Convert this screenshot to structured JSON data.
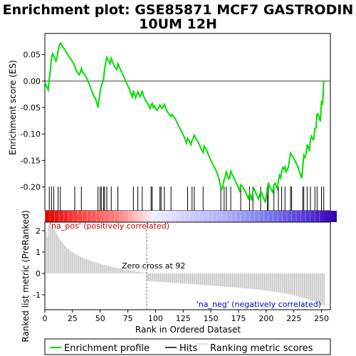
{
  "chart_data": {
    "type": "line",
    "title_line1": "Enrichment plot: GSE85871 MCF7 GASTRODIN",
    "title_line2": "10UM 12H",
    "ylabel_top": "Enrichment score (ES)",
    "ylabel_bottom": "Ranked list metric (PreRanked)",
    "xlabel": "Rank in Ordered Dataset",
    "x_ticks": [
      "0",
      "25",
      "50",
      "75",
      "100",
      "125",
      "150",
      "175",
      "200",
      "225",
      "250"
    ],
    "es_ticks": [
      "0.05",
      "0.00",
      "-0.05",
      "-0.10",
      "-0.15",
      "-0.20"
    ],
    "metric_ticks": [
      "2",
      "1",
      "0",
      "-1"
    ],
    "xlim": [
      0,
      258
    ],
    "es_ylim": [
      -0.245,
      0.09
    ],
    "metric_ylim": [
      -1.7,
      2.4
    ],
    "n_ranks": 253,
    "zero_cross_rank": 92,
    "zero_cross_label": "Zero cross at 92",
    "pos_label": "'na_pos' (positively correlated)",
    "neg_label": "'na_neg' (negatively correlated)",
    "hits": [
      4,
      6,
      8,
      12,
      14,
      27,
      33,
      48,
      50,
      51,
      53,
      54,
      56,
      60,
      66,
      80,
      84,
      88,
      96,
      97,
      104,
      105,
      108,
      114,
      129,
      133,
      135,
      143,
      159,
      162,
      164,
      168,
      177,
      185,
      188,
      195,
      201,
      202,
      207,
      211,
      214,
      217,
      222,
      223,
      233,
      234,
      237,
      240,
      244,
      246,
      250,
      252
    ],
    "es_profile": [
      [
        0,
        -0.002
      ],
      [
        1,
        -0.008
      ],
      [
        3,
        -0.017
      ],
      [
        4,
        0.003
      ],
      [
        5,
        0.022
      ],
      [
        6,
        0.044
      ],
      [
        7,
        0.052
      ],
      [
        8,
        0.047
      ],
      [
        9,
        0.043
      ],
      [
        10,
        0.038
      ],
      [
        11,
        0.045
      ],
      [
        12,
        0.058
      ],
      [
        13,
        0.067
      ],
      [
        14,
        0.072
      ],
      [
        15,
        0.069
      ],
      [
        18,
        0.059
      ],
      [
        21,
        0.049
      ],
      [
        24,
        0.04
      ],
      [
        26,
        0.033
      ],
      [
        27,
        0.029
      ],
      [
        28,
        0.021
      ],
      [
        29,
        0.018
      ],
      [
        31,
        0.012
      ],
      [
        32,
        0.016
      ],
      [
        33,
        0.024
      ],
      [
        34,
        0.018
      ],
      [
        37,
        0.009
      ],
      [
        40,
        -0.005
      ],
      [
        43,
        -0.022
      ],
      [
        46,
        -0.035
      ],
      [
        47,
        -0.042
      ],
      [
        48,
        -0.05
      ],
      [
        49,
        -0.035
      ],
      [
        50,
        -0.02
      ],
      [
        51,
        -0.009
      ],
      [
        52,
        -0.003
      ],
      [
        53,
        0.003
      ],
      [
        54,
        0.022
      ],
      [
        55,
        0.035
      ],
      [
        56,
        0.045
      ],
      [
        58,
        0.038
      ],
      [
        59,
        0.033
      ],
      [
        60,
        0.043
      ],
      [
        61,
        0.037
      ],
      [
        63,
        0.027
      ],
      [
        65,
        0.022
      ],
      [
        66,
        0.033
      ],
      [
        68,
        0.023
      ],
      [
        70,
        0.015
      ],
      [
        73,
        0.0
      ],
      [
        76,
        -0.013
      ],
      [
        79,
        -0.03
      ],
      [
        80,
        -0.018
      ],
      [
        82,
        -0.032
      ],
      [
        84,
        -0.02
      ],
      [
        85,
        -0.025
      ],
      [
        86,
        -0.03
      ],
      [
        87,
        -0.025
      ],
      [
        88,
        -0.018
      ],
      [
        89,
        -0.028
      ],
      [
        92,
        -0.04
      ],
      [
        94,
        -0.047
      ],
      [
        95,
        -0.052
      ],
      [
        96,
        -0.045
      ],
      [
        97,
        -0.042
      ],
      [
        98,
        -0.05
      ],
      [
        99,
        -0.047
      ],
      [
        101,
        -0.055
      ],
      [
        103,
        -0.05
      ],
      [
        104,
        -0.045
      ],
      [
        106,
        -0.052
      ],
      [
        107,
        -0.048
      ],
      [
        108,
        -0.044
      ],
      [
        110,
        -0.055
      ],
      [
        112,
        -0.062
      ],
      [
        114,
        -0.067
      ],
      [
        115,
        -0.063
      ],
      [
        118,
        -0.072
      ],
      [
        121,
        -0.085
      ],
      [
        124,
        -0.097
      ],
      [
        126,
        -0.106
      ],
      [
        128,
        -0.117
      ],
      [
        129,
        -0.108
      ],
      [
        131,
        -0.115
      ],
      [
        132,
        -0.12
      ],
      [
        133,
        -0.112
      ],
      [
        134,
        -0.108
      ],
      [
        135,
        -0.102
      ],
      [
        137,
        -0.11
      ],
      [
        139,
        -0.117
      ],
      [
        141,
        -0.127
      ],
      [
        143,
        -0.135
      ],
      [
        144,
        -0.123
      ],
      [
        146,
        -0.13
      ],
      [
        149,
        -0.145
      ],
      [
        152,
        -0.158
      ],
      [
        155,
        -0.17
      ],
      [
        157,
        -0.182
      ],
      [
        159,
        -0.2
      ],
      [
        160,
        -0.204
      ],
      [
        161,
        -0.197
      ],
      [
        162,
        -0.186
      ],
      [
        163,
        -0.181
      ],
      [
        164,
        -0.172
      ],
      [
        165,
        -0.178
      ],
      [
        166,
        -0.185
      ],
      [
        167,
        -0.183
      ],
      [
        168,
        -0.17
      ],
      [
        169,
        -0.175
      ],
      [
        171,
        -0.184
      ],
      [
        174,
        -0.197
      ],
      [
        176,
        -0.207
      ],
      [
        177,
        -0.196
      ],
      [
        179,
        -0.2
      ],
      [
        181,
        -0.208
      ],
      [
        184,
        -0.222
      ],
      [
        185,
        -0.212
      ],
      [
        186,
        -0.218
      ],
      [
        187,
        -0.223
      ],
      [
        188,
        -0.208
      ],
      [
        189,
        -0.203
      ],
      [
        190,
        -0.208
      ],
      [
        193,
        -0.223
      ],
      [
        195,
        -0.209
      ],
      [
        196,
        -0.21
      ],
      [
        197,
        -0.218
      ],
      [
        199,
        -0.228
      ],
      [
        200,
        -0.22
      ],
      [
        201,
        -0.203
      ],
      [
        202,
        -0.192
      ],
      [
        203,
        -0.199
      ],
      [
        206,
        -0.21
      ],
      [
        207,
        -0.196
      ],
      [
        208,
        -0.193
      ],
      [
        210,
        -0.203
      ],
      [
        211,
        -0.19
      ],
      [
        212,
        -0.178
      ],
      [
        213,
        -0.183
      ],
      [
        214,
        -0.17
      ],
      [
        215,
        -0.163
      ],
      [
        216,
        -0.166
      ],
      [
        217,
        -0.162
      ],
      [
        218,
        -0.172
      ],
      [
        220,
        -0.163
      ],
      [
        221,
        -0.149
      ],
      [
        222,
        -0.136
      ],
      [
        223,
        -0.14
      ],
      [
        225,
        -0.146
      ],
      [
        227,
        -0.155
      ],
      [
        229,
        -0.164
      ],
      [
        231,
        -0.177
      ],
      [
        232,
        -0.184
      ],
      [
        233,
        -0.164
      ],
      [
        234,
        -0.14
      ],
      [
        235,
        -0.144
      ],
      [
        236,
        -0.138
      ],
      [
        237,
        -0.12
      ],
      [
        238,
        -0.125
      ],
      [
        239,
        -0.132
      ],
      [
        240,
        -0.11
      ],
      [
        241,
        -0.104
      ],
      [
        242,
        -0.11
      ],
      [
        243,
        -0.11
      ],
      [
        244,
        -0.09
      ],
      [
        245,
        -0.088
      ],
      [
        246,
        -0.062
      ],
      [
        247,
        -0.063
      ],
      [
        248,
        -0.07
      ],
      [
        249,
        -0.076
      ],
      [
        250,
        -0.037
      ],
      [
        251,
        -0.045
      ],
      [
        252,
        0.0
      ]
    ]
  },
  "legend": [
    {
      "label": "Enrichment profile",
      "color": "#00dd00"
    },
    {
      "label": "Hits",
      "color": "#000000"
    },
    {
      "label": "Ranking metric scores",
      "color": "#c0c0c0"
    }
  ],
  "colors": {
    "enrichment": "#00dd00",
    "zero_line": "#000000",
    "metric_bars": "#c0c0c0",
    "pos_label": "#cc0000",
    "neg_label": "#0000cc",
    "heat_red": "#ee0000",
    "heat_blue": "#3300bb"
  }
}
